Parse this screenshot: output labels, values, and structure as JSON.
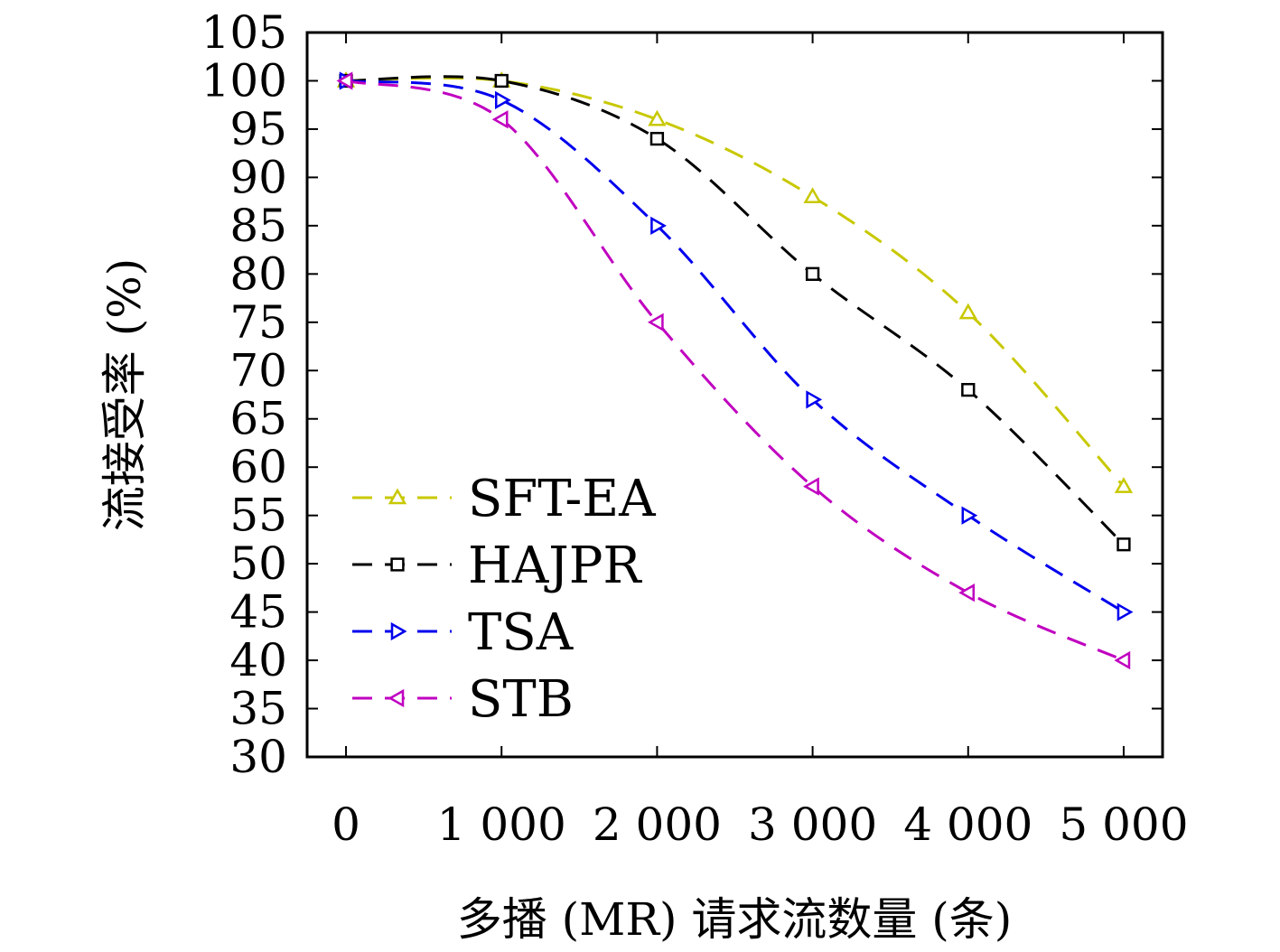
{
  "chart_data": {
    "type": "line",
    "title": "",
    "xlabel": "多播 (MR) 请求流数量 (条)",
    "ylabel": "流接受率 (%)",
    "x": [
      0,
      1000,
      2000,
      3000,
      4000,
      5000
    ],
    "x_tick_labels": [
      "0",
      "1 000",
      "2 000",
      "3 000",
      "4 000",
      "5 000"
    ],
    "y_ticks": [
      30,
      35,
      40,
      45,
      50,
      55,
      60,
      65,
      70,
      75,
      80,
      85,
      90,
      95,
      100,
      105
    ],
    "y_tick_labels": [
      "30",
      "35",
      "40",
      "45",
      "50",
      "55",
      "60",
      "65",
      "70",
      "75",
      "80",
      "85",
      "90",
      "95",
      "100",
      "105"
    ],
    "ylim": [
      30,
      105
    ],
    "xlim": [
      -250,
      5250
    ],
    "legend_position": "lower-left",
    "series": [
      {
        "name": "SFT-EA",
        "color": "#c8c800",
        "marker": "triangle-up",
        "values": [
          100,
          100,
          96,
          88,
          76,
          58
        ]
      },
      {
        "name": "HAJPR",
        "color": "#000000",
        "marker": "square",
        "values": [
          100,
          100,
          94,
          80,
          68,
          52
        ]
      },
      {
        "name": "TSA",
        "color": "#0000ee",
        "marker": "triangle-right",
        "values": [
          100,
          98,
          85,
          67,
          55,
          45
        ]
      },
      {
        "name": "STB",
        "color": "#c000c0",
        "marker": "triangle-left",
        "values": [
          100,
          96,
          75,
          58,
          47,
          40
        ]
      }
    ]
  }
}
